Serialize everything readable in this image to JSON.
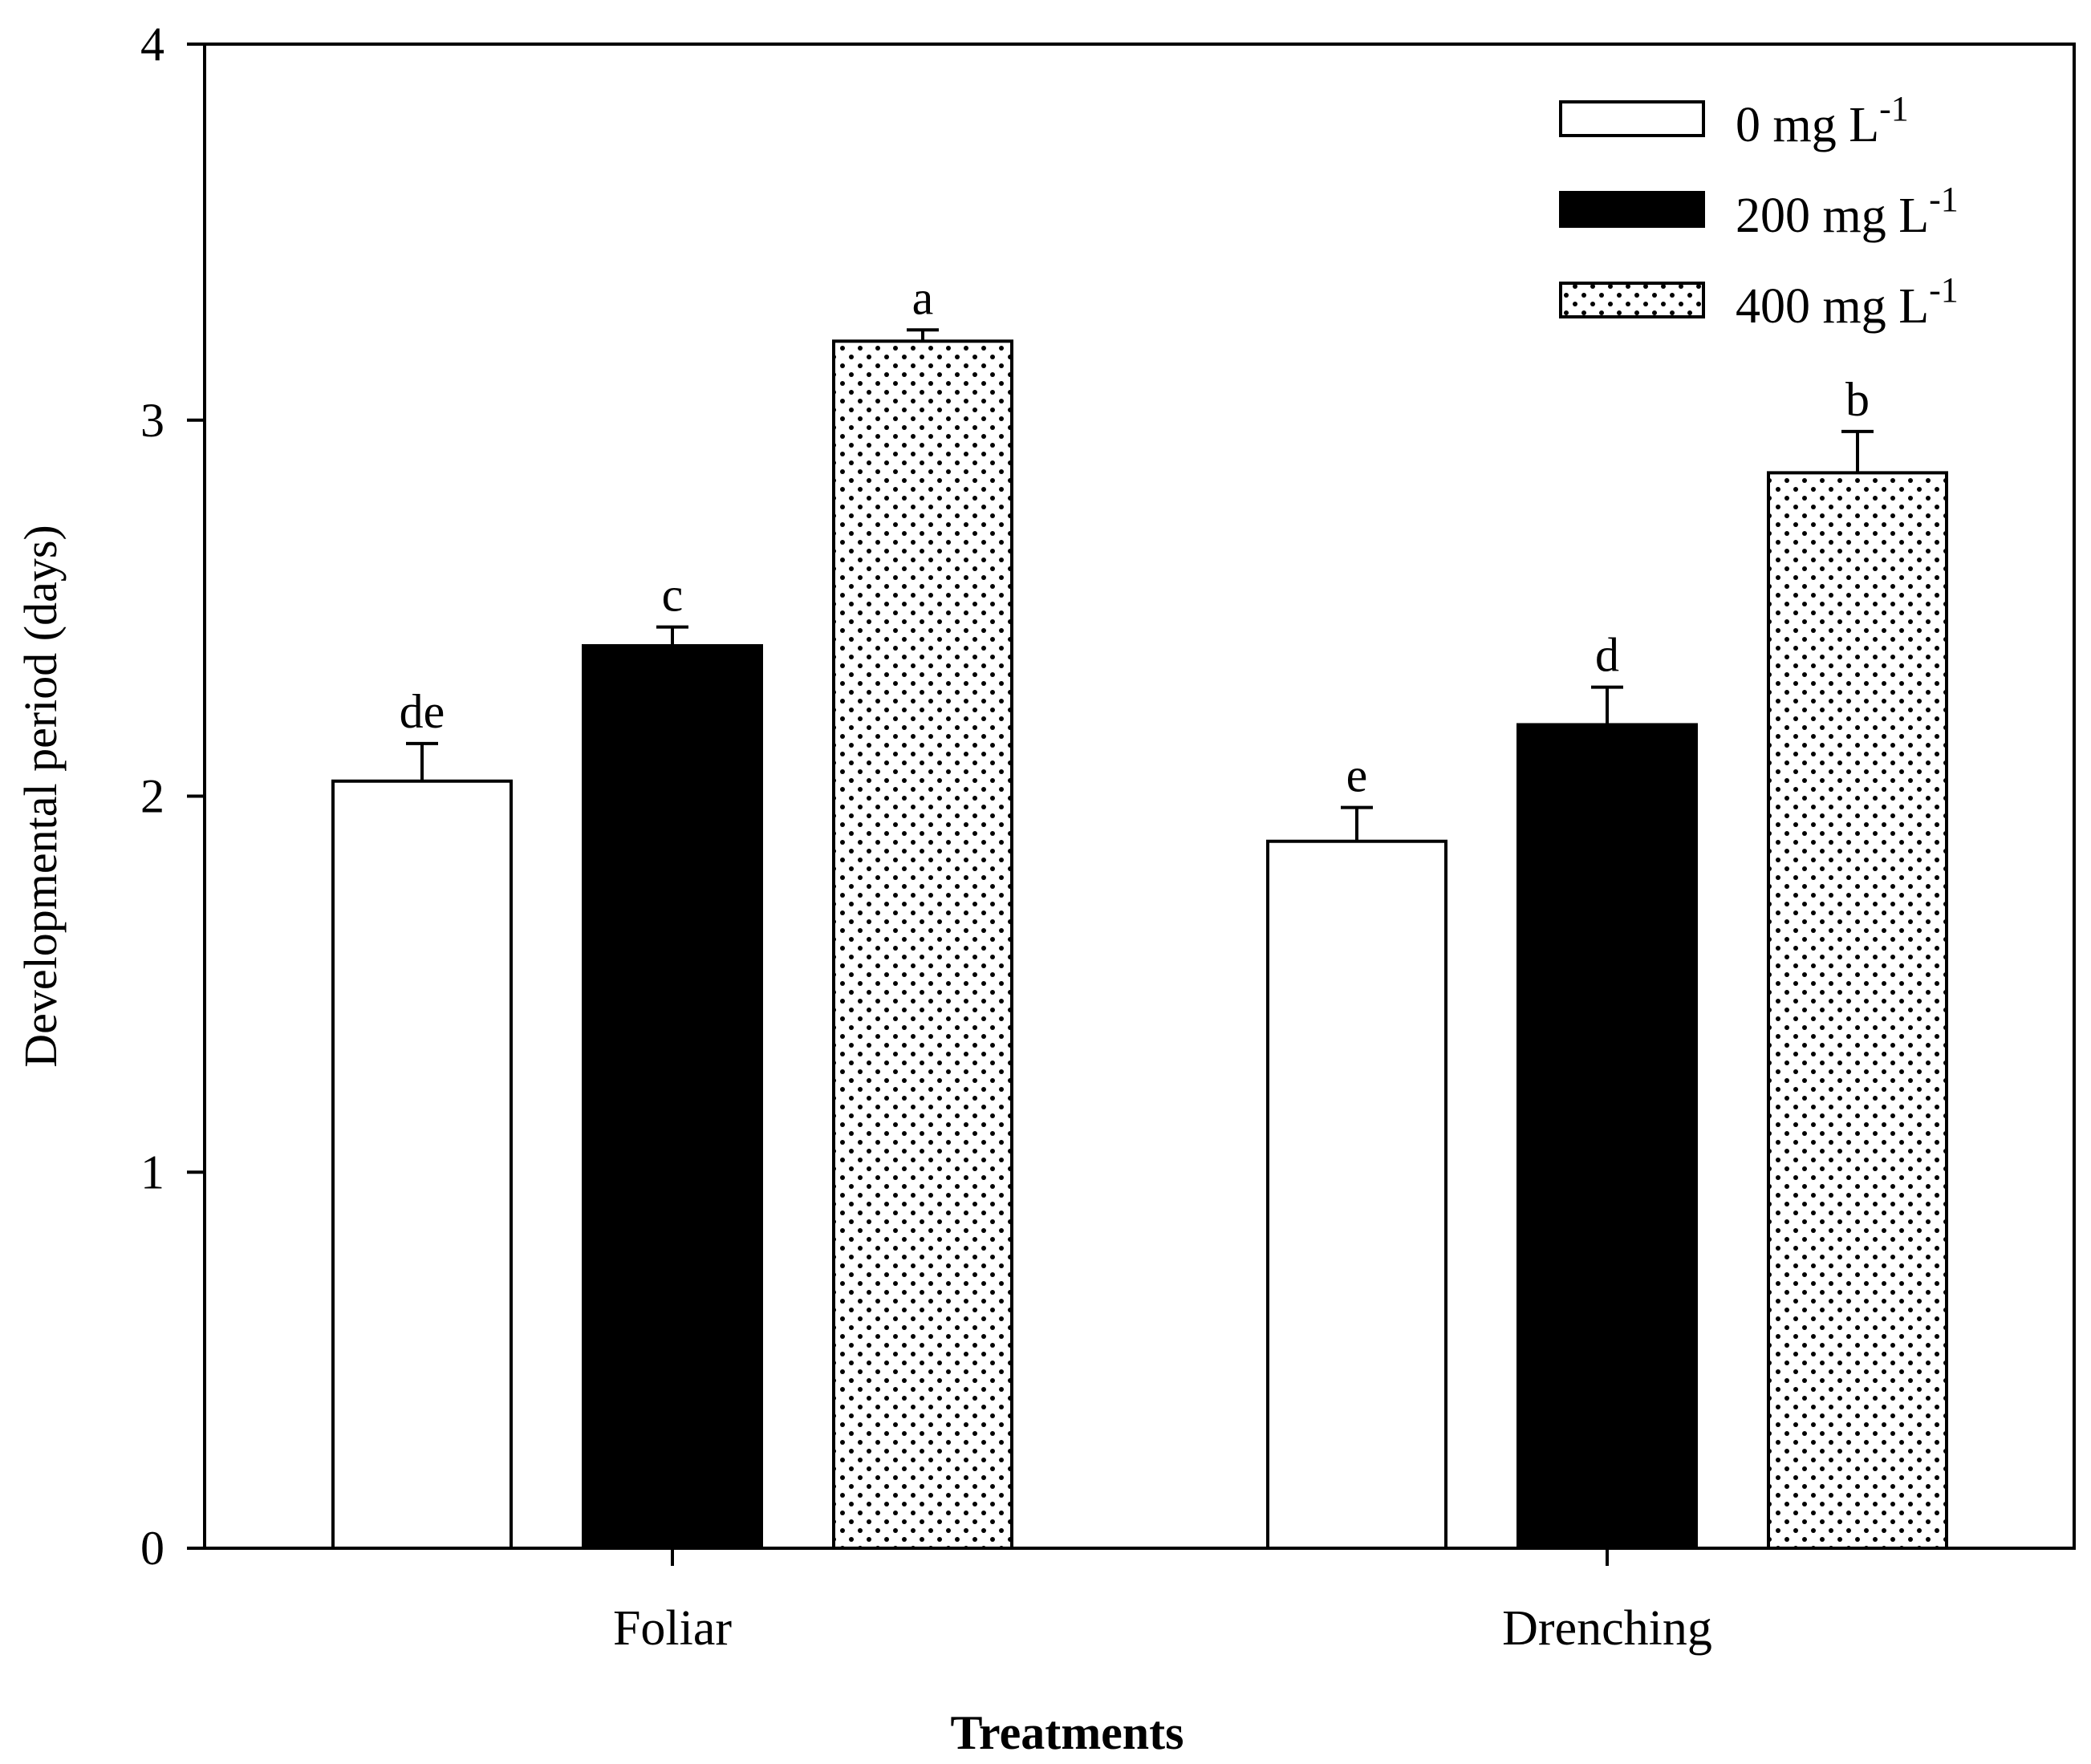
{
  "chart_data": {
    "type": "bar",
    "title": "",
    "xlabel": "Treatments",
    "ylabel": "Developmental period (days)",
    "ylim": [
      0,
      4
    ],
    "yticks": [
      0,
      1,
      2,
      3,
      4
    ],
    "categories": [
      "Foliar",
      "Drenching"
    ],
    "series": [
      {
        "name": "0 mg L-1",
        "legend_main": "0 mg L",
        "legend_sup": "-1",
        "fill": "white",
        "values": [
          2.04,
          1.88
        ],
        "errors": [
          0.1,
          0.09
        ],
        "letters": [
          "de",
          "e"
        ]
      },
      {
        "name": "200 mg L-1",
        "legend_main": "200 mg L",
        "legend_sup": "-1",
        "fill": "black",
        "values": [
          2.4,
          2.19
        ],
        "errors": [
          0.05,
          0.1
        ],
        "letters": [
          "c",
          "d"
        ]
      },
      {
        "name": "400 mg L-1",
        "legend_main": "400 mg L",
        "legend_sup": "-1",
        "fill": "dotted",
        "values": [
          3.21,
          2.86
        ],
        "errors": [
          0.03,
          0.11
        ],
        "letters": [
          "a",
          "b"
        ]
      }
    ],
    "legend_position": "top-right",
    "grid": false,
    "colors": {
      "axis": "#000000",
      "bar_dark": "#000000",
      "bar_light": "#ffffff"
    }
  }
}
